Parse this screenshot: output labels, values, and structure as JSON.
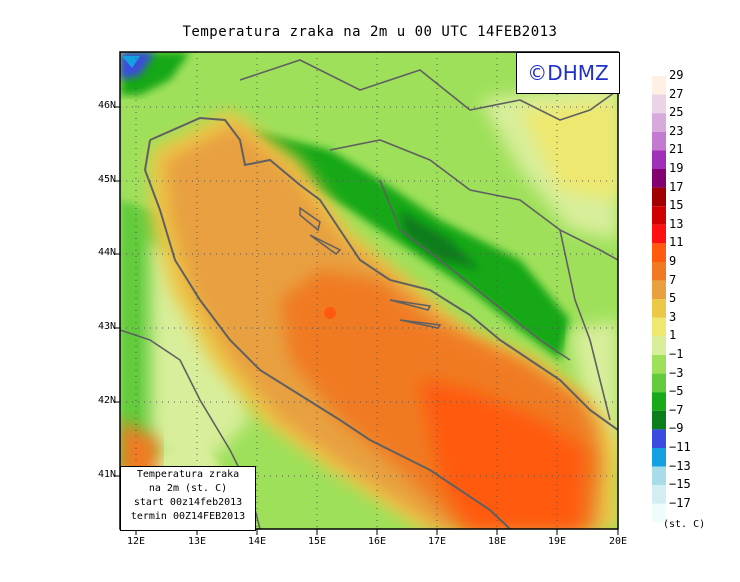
{
  "title": "Temperatura zraka na 2m u 00 UTC 14FEB2013",
  "copyright": "©DHMZ",
  "legend_box": {
    "line1": "Temperatura zraka",
    "line2": "na 2m (st. C)",
    "line3": "start 00z14feb2013",
    "line4": "termin 00Z14FEB2013"
  },
  "units": "(st. C)",
  "x_ticks": [
    "12E",
    "13E",
    "14E",
    "15E",
    "16E",
    "17E",
    "18E",
    "19E",
    "20E"
  ],
  "y_ticks": [
    "46N",
    "45N",
    "44N",
    "43N",
    "42N",
    "41N"
  ],
  "colorbar": {
    "labels": [
      "29",
      "27",
      "25",
      "23",
      "21",
      "19",
      "17",
      "15",
      "13",
      "11",
      "9",
      "7",
      "5",
      "3",
      "1",
      "−1",
      "−3",
      "−5",
      "−7",
      "−9",
      "−11",
      "−13",
      "−15",
      "−17"
    ],
    "colors": [
      "#fff0e6",
      "#ead4e6",
      "#d8aadc",
      "#c47ad0",
      "#a030b8",
      "#820070",
      "#a00000",
      "#d10000",
      "#ff1010",
      "#ff5a10",
      "#f07a22",
      "#e8a040",
      "#ecc846",
      "#eee870",
      "#d8ee9a",
      "#9ee05a",
      "#62cc3c",
      "#18a818",
      "#0b7d1a",
      "#3a4ce0",
      "#12a0e0",
      "#a8dce8",
      "#d2eef2",
      "#eefcfc"
    ]
  }
}
